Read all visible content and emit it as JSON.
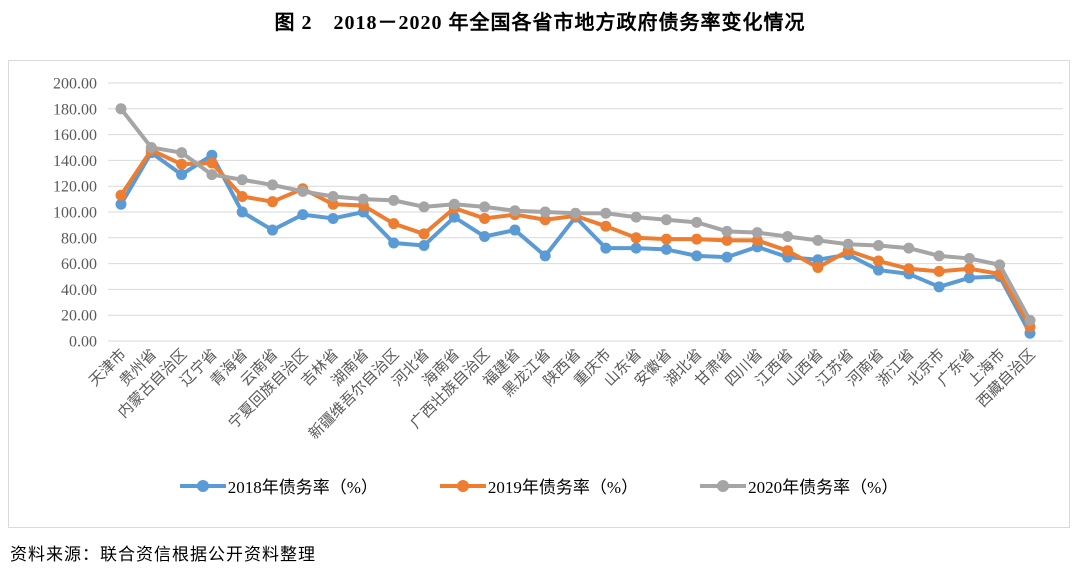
{
  "title": "图 2　2018－2020 年全国各省市地方政府债务率变化情况",
  "source_note": "资料来源：联合资信根据公开资料整理",
  "colors": {
    "series_2018": "#5b9bd5",
    "series_2019": "#ed7d31",
    "series_2020": "#a5a5a5",
    "gridline": "#d9d9d9",
    "chart_border": "#d9d9d9",
    "axis_text": "#595959",
    "title_text": "#000000"
  },
  "chart_data": {
    "type": "line",
    "title": "图 2　2018－2020 年全国各省市地方政府债务率变化情况",
    "grid": true,
    "legend_position": "bottom",
    "ylim": [
      0,
      200
    ],
    "y_tick_step": 20,
    "y_tick_labels": [
      "0.00",
      "20.00",
      "40.00",
      "60.00",
      "80.00",
      "100.00",
      "120.00",
      "140.00",
      "160.00",
      "180.00",
      "200.00"
    ],
    "categories": [
      "天津市",
      "贵州省",
      "内蒙古自治区",
      "辽宁省",
      "青海省",
      "云南省",
      "宁夏回族自治区",
      "吉林省",
      "湖南省",
      "新疆维吾尔自治区",
      "河北省",
      "海南省",
      "广西壮族自治区",
      "福建省",
      "黑龙江省",
      "陕西省",
      "重庆市",
      "山东省",
      "安徽省",
      "湖北省",
      "甘肃省",
      "四川省",
      "江西省",
      "山西省",
      "江苏省",
      "河南省",
      "浙江省",
      "北京市",
      "广东省",
      "上海市",
      "西藏自治区"
    ],
    "series": [
      {
        "name": "2018年债务率（%）",
        "color": "#5b9bd5",
        "values": [
          106,
          146,
          129,
          144,
          100,
          86,
          98,
          95,
          100,
          76,
          74,
          96,
          81,
          86,
          66,
          96,
          72,
          72,
          71,
          66,
          65,
          73,
          65,
          63,
          67,
          55,
          52,
          42,
          49,
          50,
          6
        ]
      },
      {
        "name": "2019年债务率（%）",
        "color": "#ed7d31",
        "values": [
          113,
          148,
          137,
          138,
          112,
          108,
          118,
          106,
          105,
          91,
          83,
          103,
          95,
          98,
          94,
          97,
          89,
          80,
          79,
          79,
          78,
          78,
          70,
          57,
          70,
          62,
          56,
          54,
          56,
          52,
          11
        ]
      },
      {
        "name": "2020年债务率（%）",
        "color": "#a5a5a5",
        "values": [
          180,
          150,
          146,
          129,
          125,
          121,
          116,
          112,
          110,
          109,
          104,
          106,
          104,
          101,
          100,
          99,
          99,
          96,
          94,
          92,
          85,
          84,
          81,
          78,
          75,
          74,
          72,
          66,
          64,
          59,
          16
        ]
      }
    ]
  }
}
